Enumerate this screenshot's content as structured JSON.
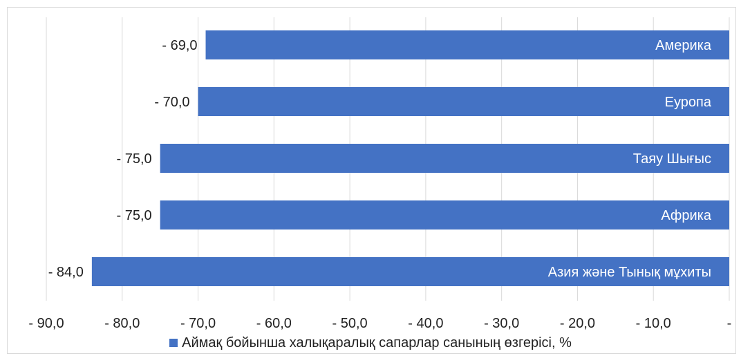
{
  "chart_data": {
    "type": "bar",
    "orientation": "horizontal",
    "categories": [
      "Америка",
      "Еуропа",
      "Таяу Шығыс",
      "Африка",
      "Азия және Тынық мұхиты"
    ],
    "series": [
      {
        "name": "Аймақ бойынша халықаралық сапарлар санының өзгерісі, %",
        "values": [
          -69.0,
          -70.0,
          -75.0,
          -75.0,
          -84.0
        ]
      }
    ],
    "data_labels": [
      "- 69,0",
      "- 70,0",
      "- 75,0",
      "- 75,0",
      "- 84,0"
    ],
    "x_ticks": [
      -90,
      -80,
      -70,
      -60,
      -50,
      -40,
      -30,
      -20,
      -10,
      0
    ],
    "x_tick_labels": [
      "- 90,0",
      "- 80,0",
      "- 70,0",
      "- 60,0",
      "- 50,0",
      "- 40,0",
      "- 30,0",
      "- 20,0",
      "- 10,0",
      "-"
    ],
    "xlim": [
      -90,
      0
    ],
    "grid": "vertical",
    "legend_position": "bottom",
    "bar_color": "#4472c4",
    "xlabel": "",
    "ylabel": "",
    "title": ""
  }
}
